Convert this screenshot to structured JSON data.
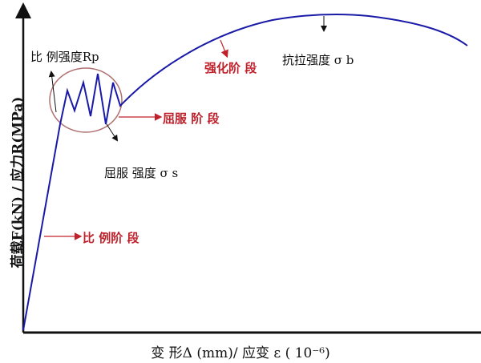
{
  "axes": {
    "y_label": "荷载F(kN) / 应力R(MPa)",
    "x_label": "变 形Δ (mm)/  应变 ε ( 10⁻⁶)"
  },
  "annotations": {
    "proportional_strength": "比 例强度Rp",
    "yield_stage": "屈服 阶 段",
    "yield_strength": "屈服 强度 σ s",
    "hardening_stage": "强化阶 段",
    "tensile_strength": "抗拉强度 σ b",
    "proportional_stage": "比 例阶 段"
  },
  "colors": {
    "curve": "#1a1aa8",
    "stage_label": "#c0202a",
    "ellipse": "#b07070"
  }
}
